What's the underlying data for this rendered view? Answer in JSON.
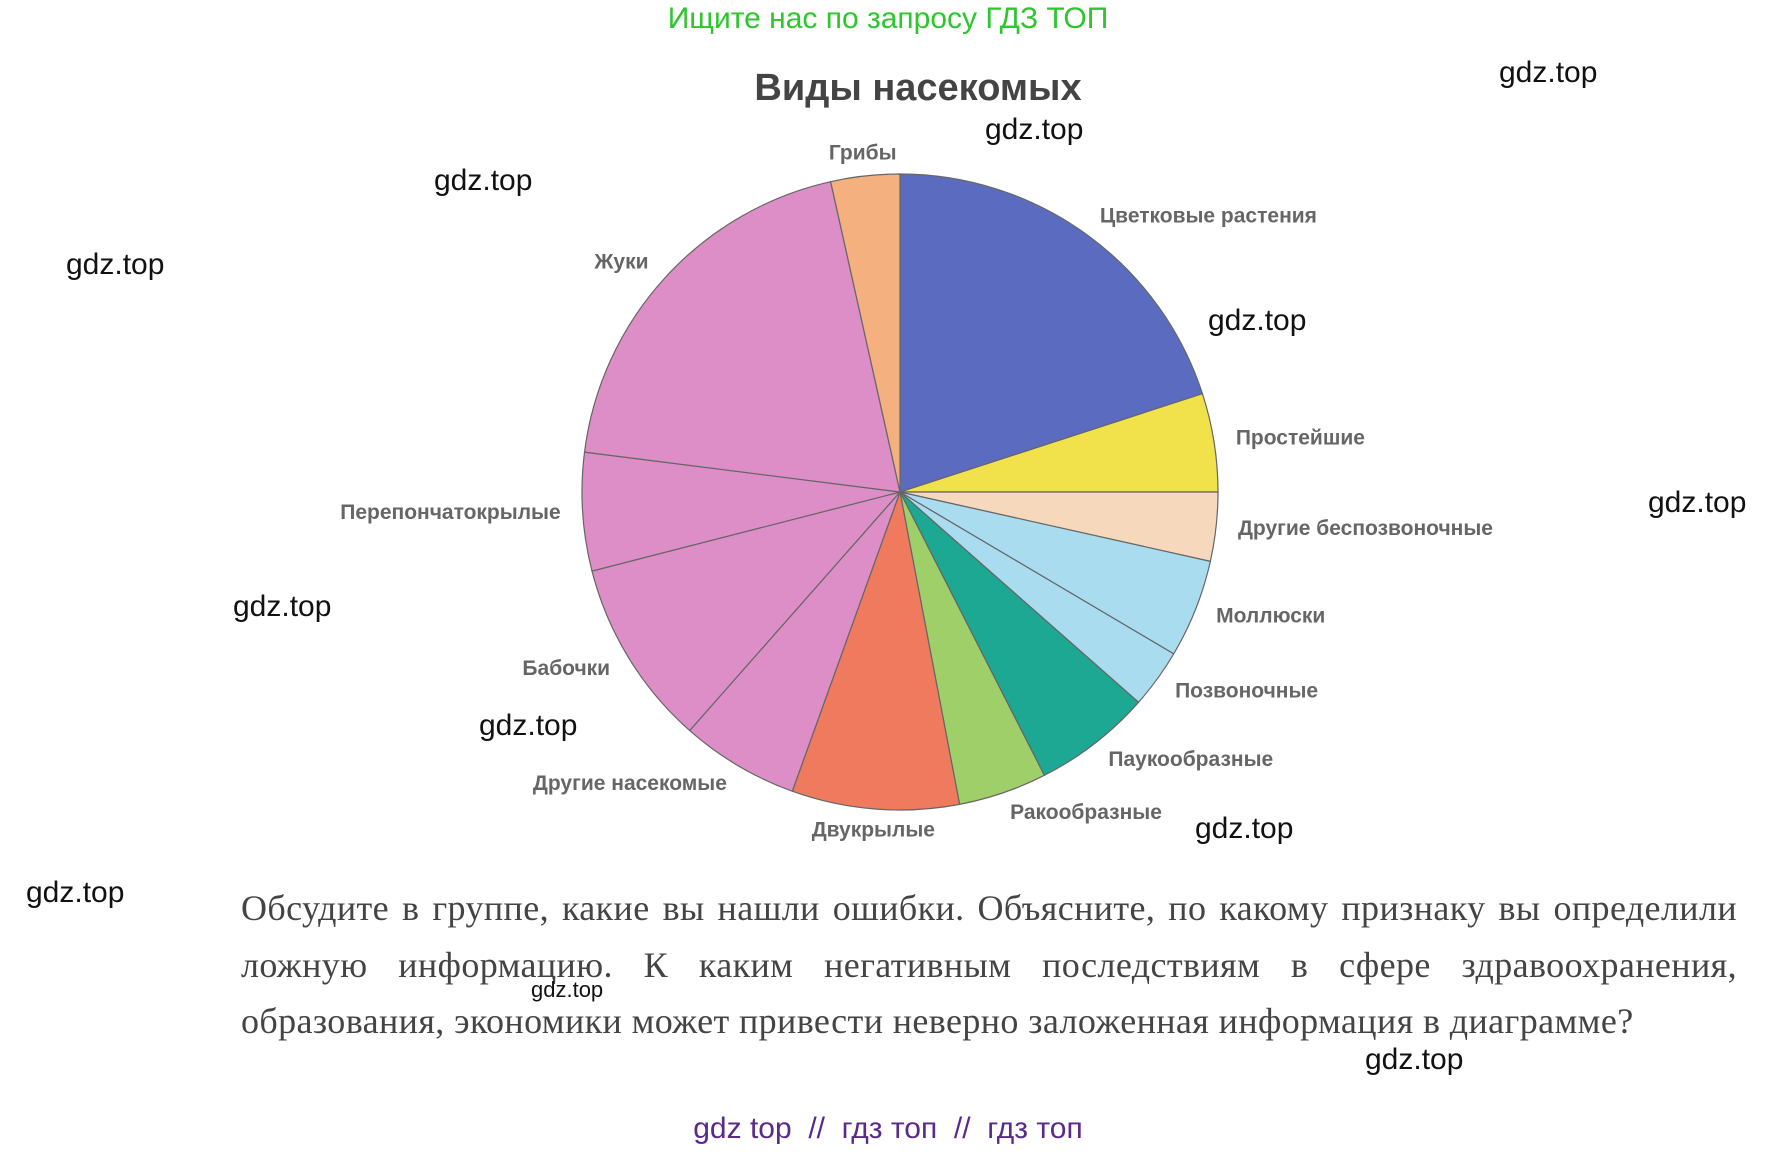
{
  "header_note": "Ищите нас по запросу ГДЗ ТОП",
  "chart_data": {
    "type": "pie",
    "title": "Виды насекомых",
    "categories": [
      "Цветковые растения",
      "Простейшие",
      "Другие беспозвоночные",
      "Моллюски",
      "Позвоночные",
      "Паукообразные",
      "Ракообразные",
      "Двукрылые",
      "Другие насекомые",
      "Бабочки",
      "Перепончатокрылые",
      "Жуки",
      "Грибы"
    ],
    "values": [
      20,
      5,
      3.5,
      5,
      3,
      6,
      4.5,
      8.5,
      6,
      9.5,
      6,
      19.5,
      3.5
    ],
    "colors": [
      "#5b6cc0",
      "#f1e24c",
      "#f6d8bc",
      "#a9dcef",
      "#a9dcef",
      "#1ca893",
      "#9fcf68",
      "#ef7a5d",
      "#dd8ec6",
      "#dd8ec6",
      "#dd8ec6",
      "#dd8ec6",
      "#f4b07e"
    ]
  },
  "question": "Обсудите в группе, какие вы нашли ошибки. Объясните, по какому признаку вы определили ложную информацию. К каким негативным последствиям в сфере здравоохранения, образования, экономики может привести неверно заложенная информация в диаграмме?",
  "footer_note": "gdz top  //  гдз топ  //  гдз топ",
  "watermarks": [
    "gdz.top",
    "gdz.top",
    "gdz.top",
    "gdz.top",
    "gdz.top",
    "gdz.top",
    "gdz.top",
    "gdz.top",
    "gdz.top",
    "gdz.top",
    "gdz.top",
    "gdz.top"
  ]
}
